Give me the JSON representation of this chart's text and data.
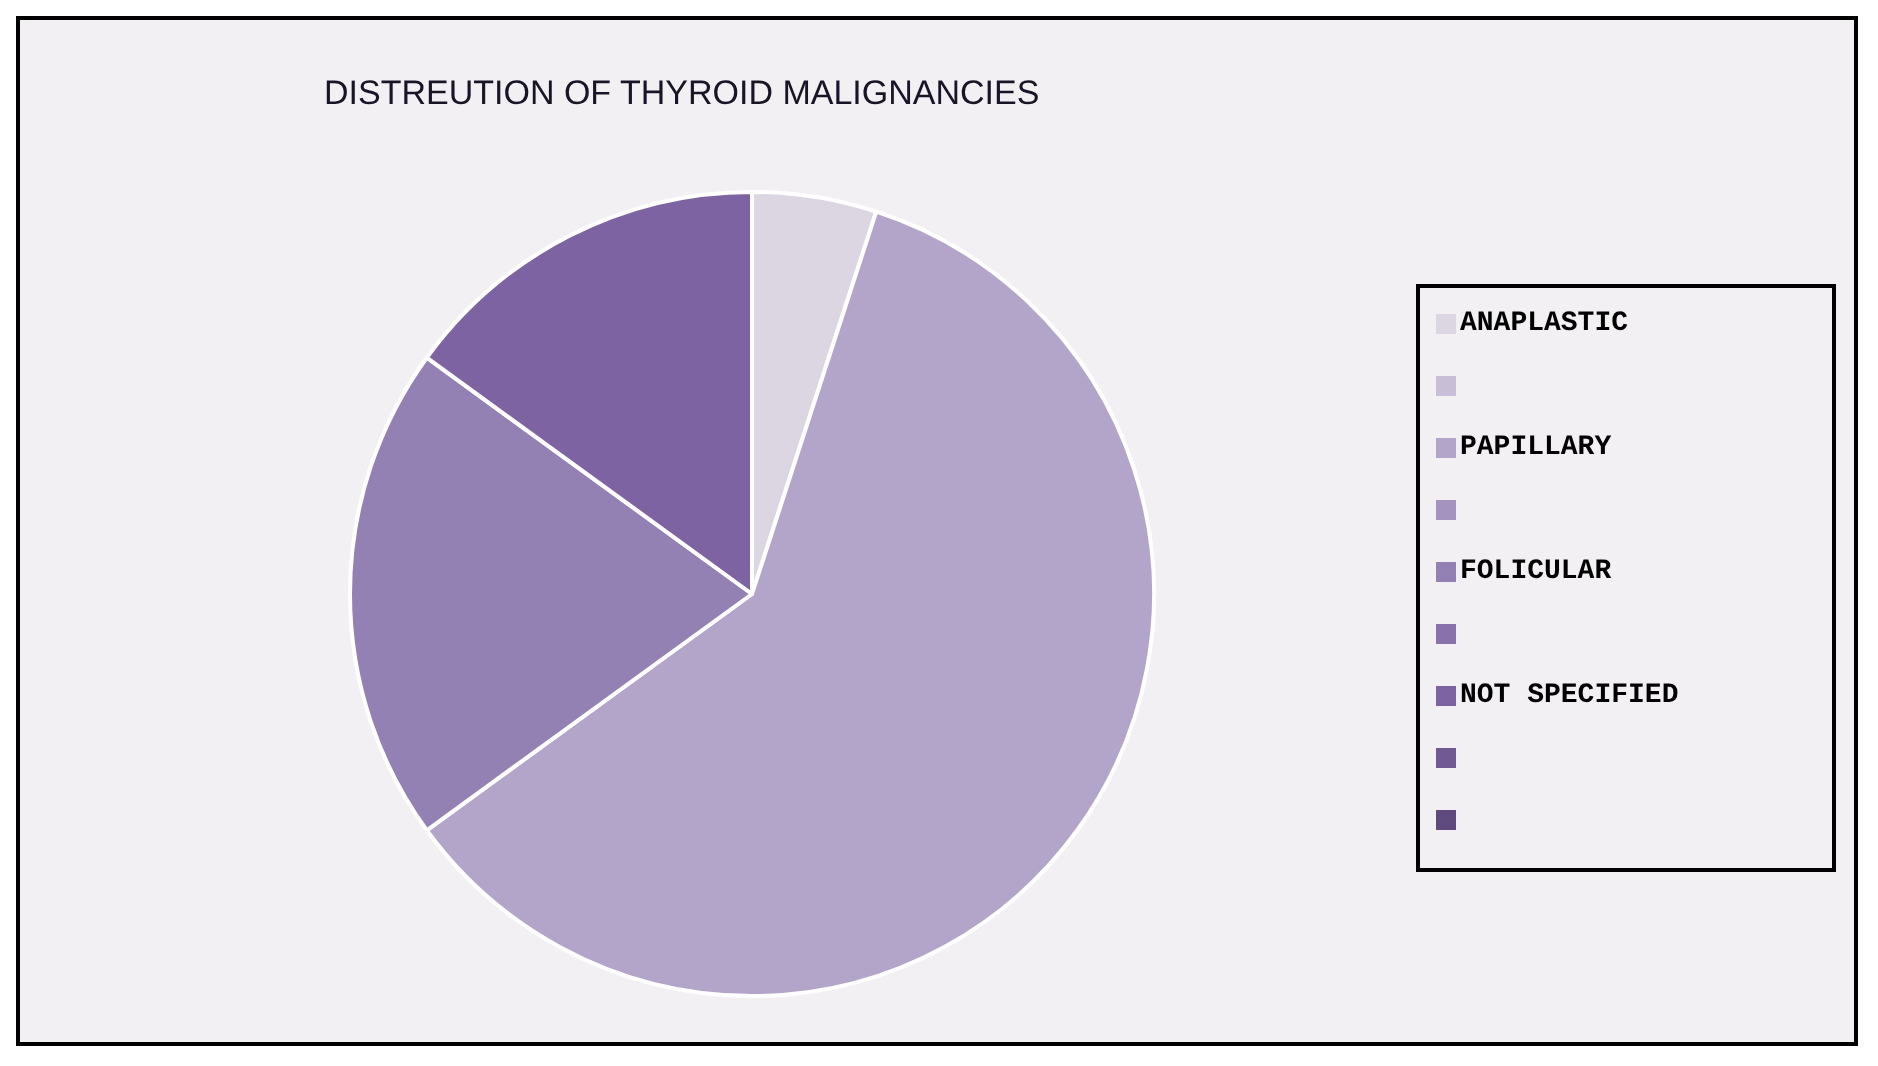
{
  "chart_data": {
    "type": "pie",
    "title": "DISTREUTION OF THYROID MALIGNANCIES",
    "categories": [
      "ANAPLASTIC",
      "PAPILLARY",
      "FOLICULAR",
      "NOT SPECIFIED"
    ],
    "values": [
      5,
      60,
      20,
      15
    ],
    "colors": [
      "#dcd6e3",
      "#b3a5c9",
      "#9481b3",
      "#7d63a1"
    ],
    "legend": "right"
  }
}
